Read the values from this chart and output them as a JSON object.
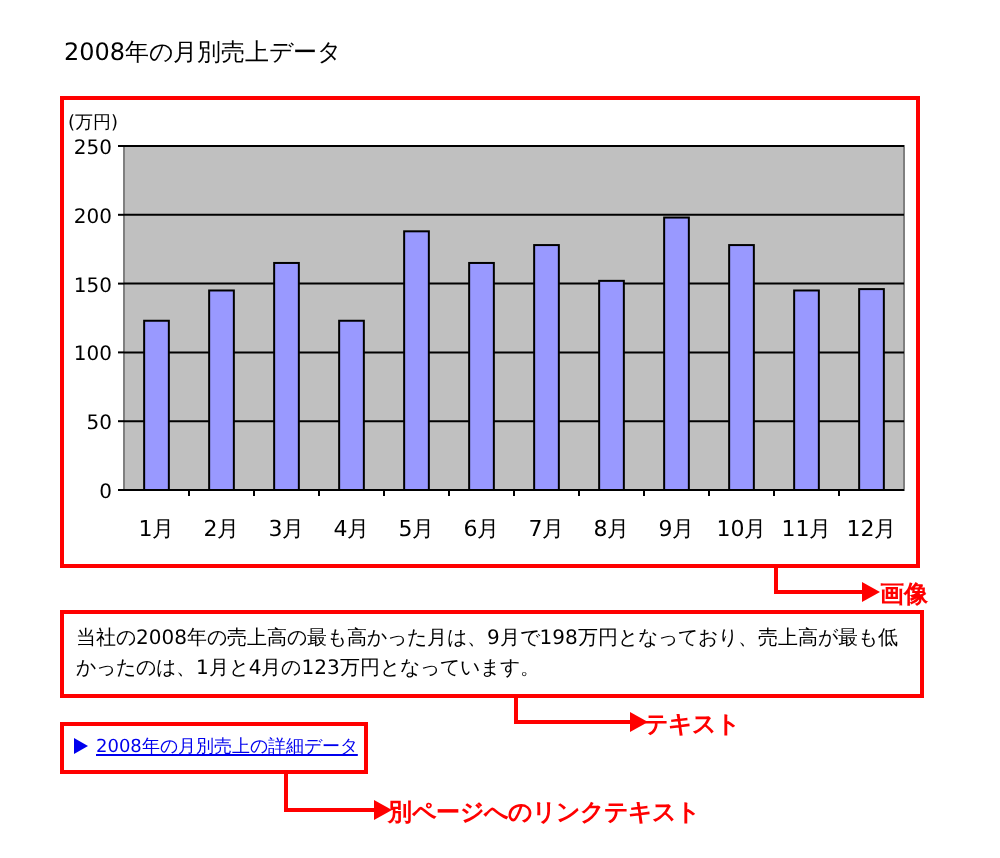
{
  "chart_data": {
    "type": "bar",
    "title": "2008年の月別売上データ",
    "ylabel": "(万円)",
    "categories": [
      "1月",
      "2月",
      "3月",
      "4月",
      "5月",
      "6月",
      "7月",
      "8月",
      "9月",
      "10月",
      "11月",
      "12月"
    ],
    "values": [
      123,
      145,
      165,
      123,
      188,
      165,
      178,
      152,
      198,
      178,
      145,
      146
    ],
    "color": "#9999ff",
    "ylim": [
      0,
      250
    ],
    "yticks": [
      0,
      50,
      100,
      150,
      200,
      250
    ],
    "grid": "y",
    "annotations": [
      "当社の2008年の売上高の最も高かった月は、9月で198万円となっており、売上高が最も低かったのは、1月と4月の123万円となっています。",
      "2008年の月別売上の詳細データ",
      "画像",
      "テキスト",
      "別ページへのリンクテキスト"
    ]
  }
}
